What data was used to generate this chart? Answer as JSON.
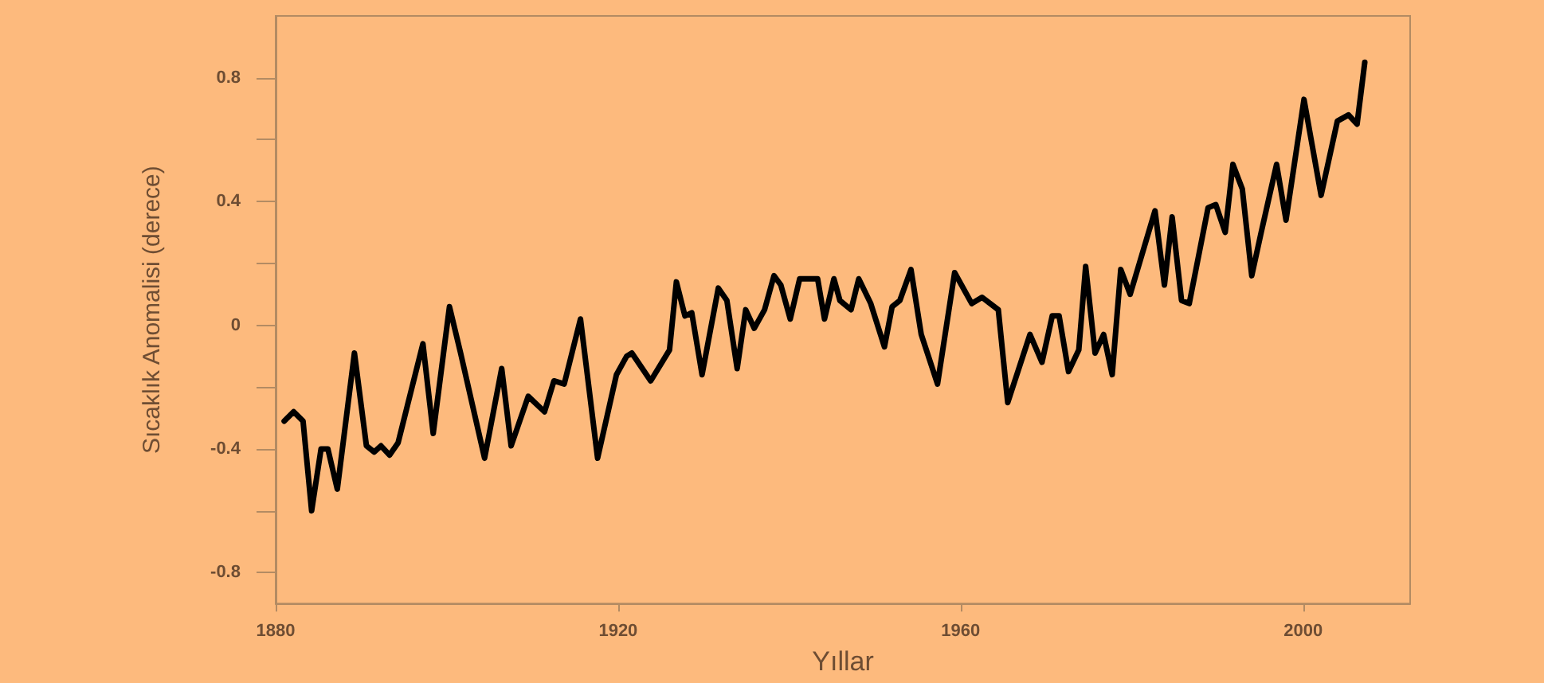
{
  "chart_data": {
    "type": "line",
    "xlabel": "Yıllar",
    "ylabel": "Sıcaklık Anomalisi (derece)",
    "x": [
      1881.0,
      1882.1,
      1883.2,
      1884.2,
      1885.3,
      1886.1,
      1887.2,
      1889.2,
      1890.6,
      1891.5,
      1892.3,
      1893.3,
      1894.3,
      1897.2,
      1898.4,
      1900.3,
      1901.6,
      1904.4,
      1906.4,
      1907.5,
      1909.5,
      1911.4,
      1912.5,
      1913.7,
      1915.6,
      1917.6,
      1919.8,
      1921.0,
      1921.6,
      1923.8,
      1926.0,
      1926.8,
      1927.8,
      1928.6,
      1929.8,
      1931.7,
      1932.7,
      1933.9,
      1934.9,
      1935.9,
      1937.1,
      1938.2,
      1939.0,
      1940.1,
      1941.2,
      1943.3,
      1944.1,
      1945.2,
      1945.9,
      1947.2,
      1948.1,
      1949.5,
      1951.1,
      1952.0,
      1952.9,
      1954.2,
      1955.4,
      1957.3,
      1959.3,
      1961.3,
      1962.5,
      1964.4,
      1965.5,
      1968.1,
      1969.5,
      1970.7,
      1971.5,
      1972.6,
      1973.8,
      1974.6,
      1975.7,
      1976.7,
      1977.7,
      1978.7,
      1979.8,
      1982.7,
      1983.8,
      1984.7,
      1985.8,
      1986.7,
      1988.9,
      1989.8,
      1990.9,
      1991.8,
      1992.9,
      1994.0,
      1995.1,
      1996.9,
      1998.0,
      2000.1,
      2002.1,
      2004.0,
      2005.3,
      2006.3,
      2007.2
    ],
    "series": [
      {
        "color": "#000000",
        "values": [
          -0.31,
          -0.28,
          -0.31,
          -0.6,
          -0.4,
          -0.4,
          -0.53,
          -0.09,
          -0.39,
          -0.41,
          -0.39,
          -0.42,
          -0.38,
          -0.06,
          -0.35,
          0.06,
          -0.09,
          -0.43,
          -0.14,
          -0.39,
          -0.23,
          -0.28,
          -0.18,
          -0.19,
          0.02,
          -0.43,
          -0.16,
          -0.1,
          -0.09,
          -0.18,
          -0.08,
          0.14,
          0.03,
          0.04,
          -0.16,
          0.12,
          0.08,
          -0.14,
          0.05,
          -0.01,
          0.05,
          0.16,
          0.13,
          0.02,
          0.15,
          0.15,
          0.02,
          0.15,
          0.08,
          0.05,
          0.15,
          0.07,
          -0.07,
          0.06,
          0.08,
          0.18,
          -0.03,
          -0.19,
          0.17,
          0.07,
          0.09,
          0.05,
          -0.25,
          -0.03,
          -0.12,
          0.03,
          0.03,
          -0.15,
          -0.08,
          0.19,
          -0.09,
          -0.03,
          -0.16,
          0.18,
          0.1,
          0.37,
          0.13,
          0.35,
          0.08,
          0.07,
          0.38,
          0.39,
          0.3,
          0.52,
          0.44,
          0.16,
          0.3,
          0.52,
          0.34,
          0.73,
          0.42,
          0.66,
          0.68,
          0.65,
          0.85
        ]
      }
    ],
    "xlim": [
      1880,
      2012.5
    ],
    "xticks": [
      1880,
      1920,
      1960,
      2000
    ],
    "ylim": [
      -0.9,
      1.0
    ],
    "yticks": [
      {
        "value": -0.8,
        "label": "-0.8"
      },
      {
        "value": -0.6,
        "label": null
      },
      {
        "value": -0.4,
        "label": "-0.4"
      },
      {
        "value": -0.2,
        "label": null
      },
      {
        "value": 0,
        "label": "0"
      },
      {
        "value": 0.2,
        "label": null
      },
      {
        "value": 0.4,
        "label": "0.4"
      },
      {
        "value": 0.6,
        "label": null
      },
      {
        "value": 0.8,
        "label": "0.8"
      }
    ],
    "grid": false,
    "marker": "none",
    "line_style": "solid"
  }
}
